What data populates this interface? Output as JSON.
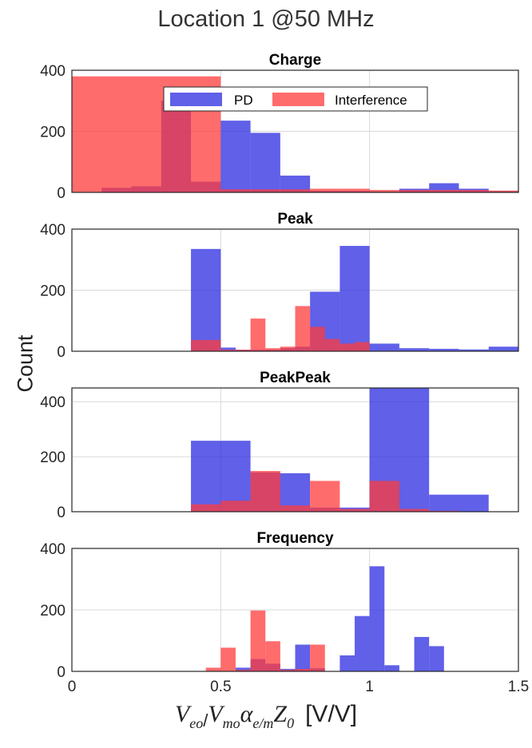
{
  "title": "Location 1 @50 MHz",
  "ylabel": "Count",
  "xlabel": {
    "Vnum": "V",
    "eo": "eo",
    "slash": "/",
    "Vden": "V",
    "mo": "mo",
    "alpha": "α",
    "esub": "e/m",
    "Z": "Z",
    "zero": "0",
    "unit": "[V/V]"
  },
  "colors": {
    "PD": "#2b2be0",
    "Interference": "#ff3b3b",
    "grid": "#d9d9d9",
    "axis": "#262626"
  },
  "legend": {
    "entries": [
      "PD",
      "Interference"
    ],
    "placement": "top-center (Charge panel)"
  },
  "x_ticks": [
    "0",
    "0.5",
    "1",
    "1.5"
  ],
  "chart_data": [
    {
      "type": "bar",
      "title": "Charge",
      "xlim": [
        0,
        1.5
      ],
      "ylim": [
        0,
        400
      ],
      "yticks": [
        0,
        200,
        400
      ],
      "grid": true,
      "series": [
        {
          "name": "PD",
          "bins": [
            {
              "x0": 0.1,
              "x1": 0.2,
              "y": 15
            },
            {
              "x0": 0.2,
              "x1": 0.3,
              "y": 20
            },
            {
              "x0": 0.3,
              "x1": 0.4,
              "y": 300
            },
            {
              "x0": 0.4,
              "x1": 0.5,
              "y": 35
            },
            {
              "x0": 0.5,
              "x1": 0.6,
              "y": 235
            },
            {
              "x0": 0.6,
              "x1": 0.7,
              "y": 195
            },
            {
              "x0": 0.7,
              "x1": 0.8,
              "y": 55
            },
            {
              "x0": 0.8,
              "x1": 0.9,
              "y": 5
            },
            {
              "x0": 0.9,
              "x1": 1.0,
              "y": 5
            },
            {
              "x0": 1.0,
              "x1": 1.1,
              "y": 3
            },
            {
              "x0": 1.1,
              "x1": 1.2,
              "y": 12
            },
            {
              "x0": 1.2,
              "x1": 1.3,
              "y": 30
            },
            {
              "x0": 1.3,
              "x1": 1.4,
              "y": 12
            },
            {
              "x0": 1.4,
              "x1": 1.5,
              "y": 4
            }
          ]
        },
        {
          "name": "Interference",
          "bins": [
            {
              "x0": 0.0,
              "x1": 0.5,
              "y": 380
            },
            {
              "x0": 0.5,
              "x1": 0.6,
              "y": 10
            },
            {
              "x0": 0.6,
              "x1": 0.7,
              "y": 10
            },
            {
              "x0": 0.7,
              "x1": 0.8,
              "y": 10
            },
            {
              "x0": 0.8,
              "x1": 0.9,
              "y": 12
            },
            {
              "x0": 0.9,
              "x1": 1.0,
              "y": 12
            },
            {
              "x0": 1.0,
              "x1": 1.1,
              "y": 8
            },
            {
              "x0": 1.1,
              "x1": 1.2,
              "y": 8
            },
            {
              "x0": 1.2,
              "x1": 1.3,
              "y": 8
            },
            {
              "x0": 1.3,
              "x1": 1.4,
              "y": 8
            },
            {
              "x0": 1.4,
              "x1": 1.5,
              "y": 6
            }
          ]
        }
      ]
    },
    {
      "type": "bar",
      "title": "Peak",
      "xlim": [
        0,
        1.5
      ],
      "ylim": [
        0,
        400
      ],
      "yticks": [
        0,
        200,
        400
      ],
      "grid": true,
      "series": [
        {
          "name": "PD",
          "bins": [
            {
              "x0": 0.4,
              "x1": 0.5,
              "y": 335
            },
            {
              "x0": 0.5,
              "x1": 0.55,
              "y": 12
            },
            {
              "x0": 0.55,
              "x1": 0.6,
              "y": 5
            },
            {
              "x0": 0.6,
              "x1": 0.65,
              "y": 5
            },
            {
              "x0": 0.65,
              "x1": 0.7,
              "y": 5
            },
            {
              "x0": 0.7,
              "x1": 0.75,
              "y": 10
            },
            {
              "x0": 0.75,
              "x1": 0.8,
              "y": 15
            },
            {
              "x0": 0.8,
              "x1": 0.9,
              "y": 195
            },
            {
              "x0": 0.9,
              "x1": 1.0,
              "y": 345
            },
            {
              "x0": 1.0,
              "x1": 1.1,
              "y": 25
            },
            {
              "x0": 1.1,
              "x1": 1.2,
              "y": 10
            },
            {
              "x0": 1.2,
              "x1": 1.3,
              "y": 8
            },
            {
              "x0": 1.3,
              "x1": 1.4,
              "y": 6
            },
            {
              "x0": 1.4,
              "x1": 1.5,
              "y": 15
            }
          ]
        },
        {
          "name": "Interference",
          "bins": [
            {
              "x0": 0.4,
              "x1": 0.45,
              "y": 37
            },
            {
              "x0": 0.45,
              "x1": 0.5,
              "y": 37
            },
            {
              "x0": 0.5,
              "x1": 0.55,
              "y": 5
            },
            {
              "x0": 0.55,
              "x1": 0.6,
              "y": 5
            },
            {
              "x0": 0.6,
              "x1": 0.65,
              "y": 107
            },
            {
              "x0": 0.65,
              "x1": 0.7,
              "y": 10
            },
            {
              "x0": 0.7,
              "x1": 0.75,
              "y": 15
            },
            {
              "x0": 0.75,
              "x1": 0.8,
              "y": 148
            },
            {
              "x0": 0.8,
              "x1": 0.85,
              "y": 80
            },
            {
              "x0": 0.85,
              "x1": 0.9,
              "y": 40
            },
            {
              "x0": 0.9,
              "x1": 0.95,
              "y": 25
            },
            {
              "x0": 0.95,
              "x1": 1.0,
              "y": 30
            }
          ]
        }
      ]
    },
    {
      "type": "bar",
      "title": "PeakPeak",
      "xlim": [
        0,
        1.5
      ],
      "ylim": [
        0,
        450
      ],
      "yticks": [
        0,
        200,
        400
      ],
      "grid": true,
      "series": [
        {
          "name": "PD",
          "bins": [
            {
              "x0": 0.4,
              "x1": 0.6,
              "y": 258
            },
            {
              "x0": 0.6,
              "x1": 0.7,
              "y": 143
            },
            {
              "x0": 0.7,
              "x1": 0.8,
              "y": 140
            },
            {
              "x0": 0.8,
              "x1": 0.9,
              "y": 15
            },
            {
              "x0": 0.9,
              "x1": 1.0,
              "y": 15
            },
            {
              "x0": 1.0,
              "x1": 1.2,
              "y": 450
            },
            {
              "x0": 1.2,
              "x1": 1.4,
              "y": 62
            }
          ]
        },
        {
          "name": "Interference",
          "bins": [
            {
              "x0": 0.4,
              "x1": 0.5,
              "y": 27
            },
            {
              "x0": 0.5,
              "x1": 0.6,
              "y": 40
            },
            {
              "x0": 0.6,
              "x1": 0.7,
              "y": 148
            },
            {
              "x0": 0.7,
              "x1": 0.8,
              "y": 23
            },
            {
              "x0": 0.8,
              "x1": 0.9,
              "y": 112
            },
            {
              "x0": 0.9,
              "x1": 1.0,
              "y": 10
            },
            {
              "x0": 1.0,
              "x1": 1.1,
              "y": 112
            },
            {
              "x0": 1.1,
              "x1": 1.2,
              "y": 10
            },
            {
              "x0": 1.2,
              "x1": 1.3,
              "y": 3
            }
          ]
        }
      ]
    },
    {
      "type": "bar",
      "title": "Frequency",
      "xlim": [
        0,
        1.5
      ],
      "ylim": [
        0,
        400
      ],
      "yticks": [
        0,
        200,
        400
      ],
      "grid": true,
      "series": [
        {
          "name": "PD",
          "bins": [
            {
              "x0": 0.55,
              "x1": 0.6,
              "y": 12
            },
            {
              "x0": 0.6,
              "x1": 0.65,
              "y": 40
            },
            {
              "x0": 0.65,
              "x1": 0.7,
              "y": 25
            },
            {
              "x0": 0.7,
              "x1": 0.75,
              "y": 8
            },
            {
              "x0": 0.75,
              "x1": 0.8,
              "y": 87
            },
            {
              "x0": 0.8,
              "x1": 0.85,
              "y": 10
            },
            {
              "x0": 0.9,
              "x1": 0.95,
              "y": 52
            },
            {
              "x0": 0.95,
              "x1": 1.0,
              "y": 180
            },
            {
              "x0": 1.0,
              "x1": 1.05,
              "y": 342
            },
            {
              "x0": 1.05,
              "x1": 1.1,
              "y": 20
            },
            {
              "x0": 1.15,
              "x1": 1.2,
              "y": 112
            },
            {
              "x0": 1.2,
              "x1": 1.25,
              "y": 82
            }
          ]
        },
        {
          "name": "Interference",
          "bins": [
            {
              "x0": 0.45,
              "x1": 0.5,
              "y": 12
            },
            {
              "x0": 0.5,
              "x1": 0.55,
              "y": 77
            },
            {
              "x0": 0.55,
              "x1": 0.6,
              "y": 5
            },
            {
              "x0": 0.6,
              "x1": 0.65,
              "y": 198
            },
            {
              "x0": 0.65,
              "x1": 0.7,
              "y": 98
            },
            {
              "x0": 0.7,
              "x1": 0.75,
              "y": 5
            },
            {
              "x0": 0.75,
              "x1": 0.8,
              "y": 8
            },
            {
              "x0": 0.8,
              "x1": 0.85,
              "y": 87
            }
          ]
        }
      ]
    }
  ]
}
